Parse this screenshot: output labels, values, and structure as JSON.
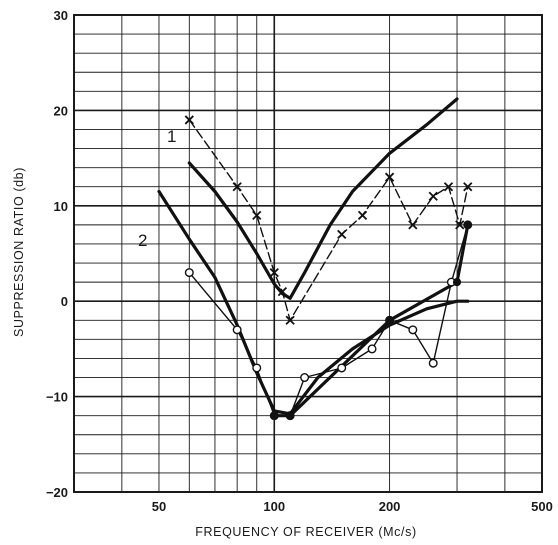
{
  "chart_data": {
    "type": "line",
    "xlabel": "FREQUENCY OF RECEIVER (Mc/s)",
    "ylabel": "SUPPRESSION RATIO (db)",
    "xscale": "log",
    "xlim": [
      30,
      500
    ],
    "ylim": [
      -20,
      30
    ],
    "x_ticks": [
      50,
      100,
      200,
      500
    ],
    "y_ticks": [
      -20,
      -10,
      0,
      10,
      20,
      30
    ],
    "grid": true,
    "curve_labels": [
      "1",
      "2"
    ],
    "series": [
      {
        "marker": "none",
        "style": "bold",
        "x": [
          60,
          70,
          80,
          90,
          100,
          105,
          110,
          120,
          140,
          160,
          200,
          250,
          300
        ],
        "y": [
          14.5,
          11.5,
          8.3,
          5,
          1.8,
          0.8,
          0.3,
          3,
          8,
          11.5,
          15.5,
          18.5,
          21.2
        ]
      },
      {
        "marker": "none",
        "style": "bold",
        "x": [
          50,
          60,
          70,
          80,
          90,
          100,
          110,
          130,
          160,
          200,
          250,
          300,
          320
        ],
        "y": [
          11.5,
          6.5,
          2.5,
          -2.5,
          -7.5,
          -11.5,
          -11.8,
          -8,
          -5,
          -2.5,
          -0.8,
          0,
          0
        ]
      },
      {
        "marker": "x",
        "style": "dashed",
        "x": [
          60,
          80,
          90,
          100,
          105,
          110,
          150,
          170,
          200,
          230,
          260,
          285,
          305,
          320
        ],
        "y": [
          19,
          12,
          9,
          3,
          1,
          -2,
          7,
          9,
          13,
          8,
          11,
          12,
          8,
          12
        ]
      },
      {
        "marker": "o",
        "style": "solid",
        "x": [
          60,
          80,
          90,
          100,
          110,
          120,
          150,
          180,
          200,
          230,
          260,
          290,
          320
        ],
        "y": [
          3,
          -3,
          -7,
          -12,
          -12,
          -8,
          -7,
          -5,
          -2,
          -3,
          -6.5,
          2,
          8
        ]
      },
      {
        "marker": "filled-diamond",
        "style": "bold",
        "x": [
          100,
          110,
          200,
          300,
          320
        ],
        "y": [
          -12,
          -12,
          -2,
          2,
          8
        ]
      }
    ]
  }
}
